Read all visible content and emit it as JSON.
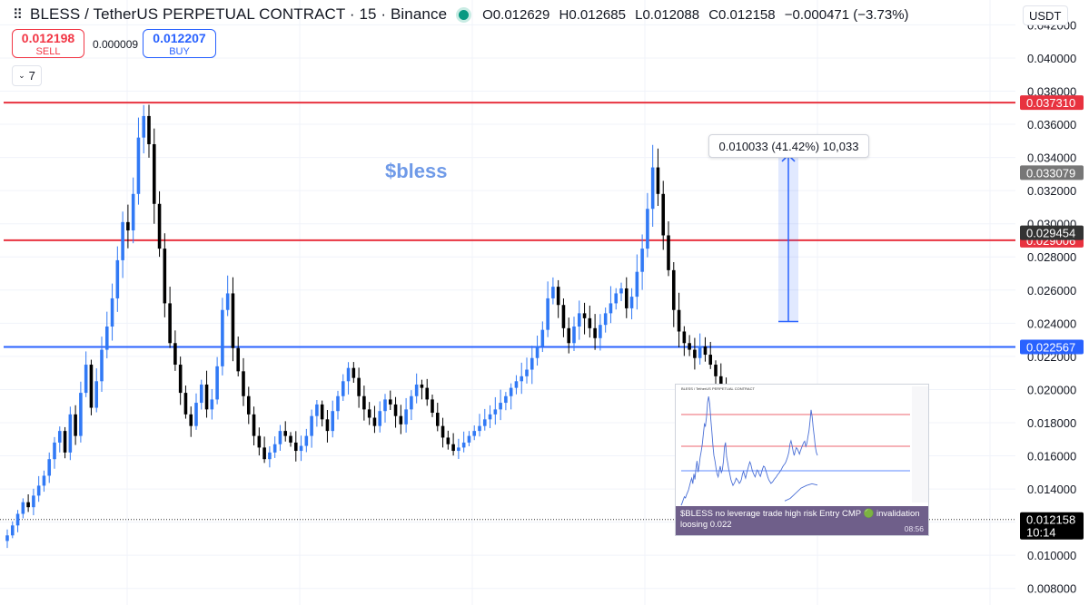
{
  "header": {
    "title": "BLESS / TetherUS PERPETUAL CONTRACT · 15 · Binance",
    "open": "O0.012629",
    "high": "H0.012685",
    "low": "L0.012088",
    "close": "C0.012158",
    "change": "−0.000471 (−3.73%)"
  },
  "trade": {
    "sell_price": "0.012198",
    "sell_label": "SELL",
    "spread": "0.000009",
    "buy_price": "0.012207",
    "buy_label": "BUY"
  },
  "indicator_count": "7",
  "currency": "USDT",
  "measure_label": "0.010033 (41.42%) 10,033",
  "annotation": "$bless",
  "colors": {
    "up": "#3179f5",
    "down": "#000000",
    "resistance": "#e8323f",
    "support": "#2962ff",
    "measure": "#2962ff"
  },
  "inset": {
    "title": "BLESS / TetherUS PERPETUAL CONTRACT",
    "message": "$BLESS no leverage trade high risk Entry CMP 🟢 invalidation loosing 0.022",
    "time": "08:56"
  },
  "chart_data": {
    "type": "candlestick",
    "y_axis": {
      "min": 0.007,
      "max": 0.0435,
      "ticks": [
        "0.042000",
        "0.040000",
        "0.038000",
        "0.036000",
        "0.034000",
        "0.032000",
        "0.030000",
        "0.028000",
        "0.026000",
        "0.024000",
        "0.022000",
        "0.020000",
        "0.018000",
        "0.016000",
        "0.014000",
        "0.012000",
        "0.010000",
        "0.008000"
      ]
    },
    "grid": true,
    "horizontal_lines": [
      {
        "value": 0.03731,
        "label": "0.037310",
        "color": "#e8323f"
      },
      {
        "value": 0.029006,
        "label": "0.029006",
        "color": "#e8323f"
      },
      {
        "value": 0.022567,
        "label": "0.022567",
        "color": "#2962ff"
      }
    ],
    "price_tags": [
      {
        "value": 0.033079,
        "label": "0.033079",
        "bg": "#777777"
      },
      {
        "value": 0.029454,
        "label": "0.029454",
        "bg": "#333333"
      },
      {
        "value": 0.012158,
        "label": "0.012158",
        "sub": "10:14",
        "bg": "#000000"
      }
    ],
    "measure": {
      "from": 0.0241,
      "to": 0.0342
    },
    "series": [
      {
        "name": "candles",
        "close_path": [
          0.0112,
          0.0118,
          0.0125,
          0.0132,
          0.0129,
          0.0136,
          0.0142,
          0.0148,
          0.0158,
          0.0168,
          0.0175,
          0.0162,
          0.0185,
          0.0172,
          0.0198,
          0.0215,
          0.0189,
          0.0205,
          0.0224,
          0.0238,
          0.0255,
          0.0278,
          0.0301,
          0.0296,
          0.0318,
          0.0352,
          0.0365,
          0.0348,
          0.0312,
          0.0285,
          0.0252,
          0.0228,
          0.0215,
          0.0198,
          0.0185,
          0.0178,
          0.0192,
          0.0203,
          0.0188,
          0.0194,
          0.0214,
          0.0248,
          0.0258,
          0.0225,
          0.0211,
          0.0196,
          0.0185,
          0.0172,
          0.0165,
          0.0158,
          0.0162,
          0.0167,
          0.0175,
          0.0172,
          0.0168,
          0.0163,
          0.0166,
          0.0172,
          0.0184,
          0.0191,
          0.0182,
          0.0175,
          0.0187,
          0.0196,
          0.0205,
          0.0213,
          0.0207,
          0.0196,
          0.0188,
          0.0183,
          0.0178,
          0.0187,
          0.0194,
          0.0191,
          0.0184,
          0.0179,
          0.0188,
          0.0196,
          0.0203,
          0.0201,
          0.0194,
          0.0186,
          0.0178,
          0.0171,
          0.0167,
          0.0163,
          0.0165,
          0.0168,
          0.0172,
          0.0175,
          0.0178,
          0.0182,
          0.0185,
          0.0188,
          0.0192,
          0.0196,
          0.0201,
          0.0205,
          0.0208,
          0.0212,
          0.0219,
          0.0226,
          0.0236,
          0.0255,
          0.0262,
          0.0251,
          0.0237,
          0.0228,
          0.0238,
          0.0246,
          0.0243,
          0.0237,
          0.0231,
          0.0239,
          0.0246,
          0.0252,
          0.0258,
          0.0261,
          0.0249,
          0.0256,
          0.0271,
          0.0285,
          0.0309,
          0.0334,
          0.0318,
          0.0293,
          0.0272,
          0.0248,
          0.0235,
          0.0228,
          0.0224,
          0.0219,
          0.0226,
          0.0221,
          0.0215,
          0.0208,
          0.0201,
          0.0193,
          0.0186,
          0.0179,
          0.0172,
          0.0168,
          0.0161,
          0.0155,
          0.0147,
          0.0141,
          0.0138,
          0.0134,
          0.013,
          0.0127,
          0.0125,
          0.0124,
          0.0122,
          0.0122
        ]
      }
    ]
  }
}
